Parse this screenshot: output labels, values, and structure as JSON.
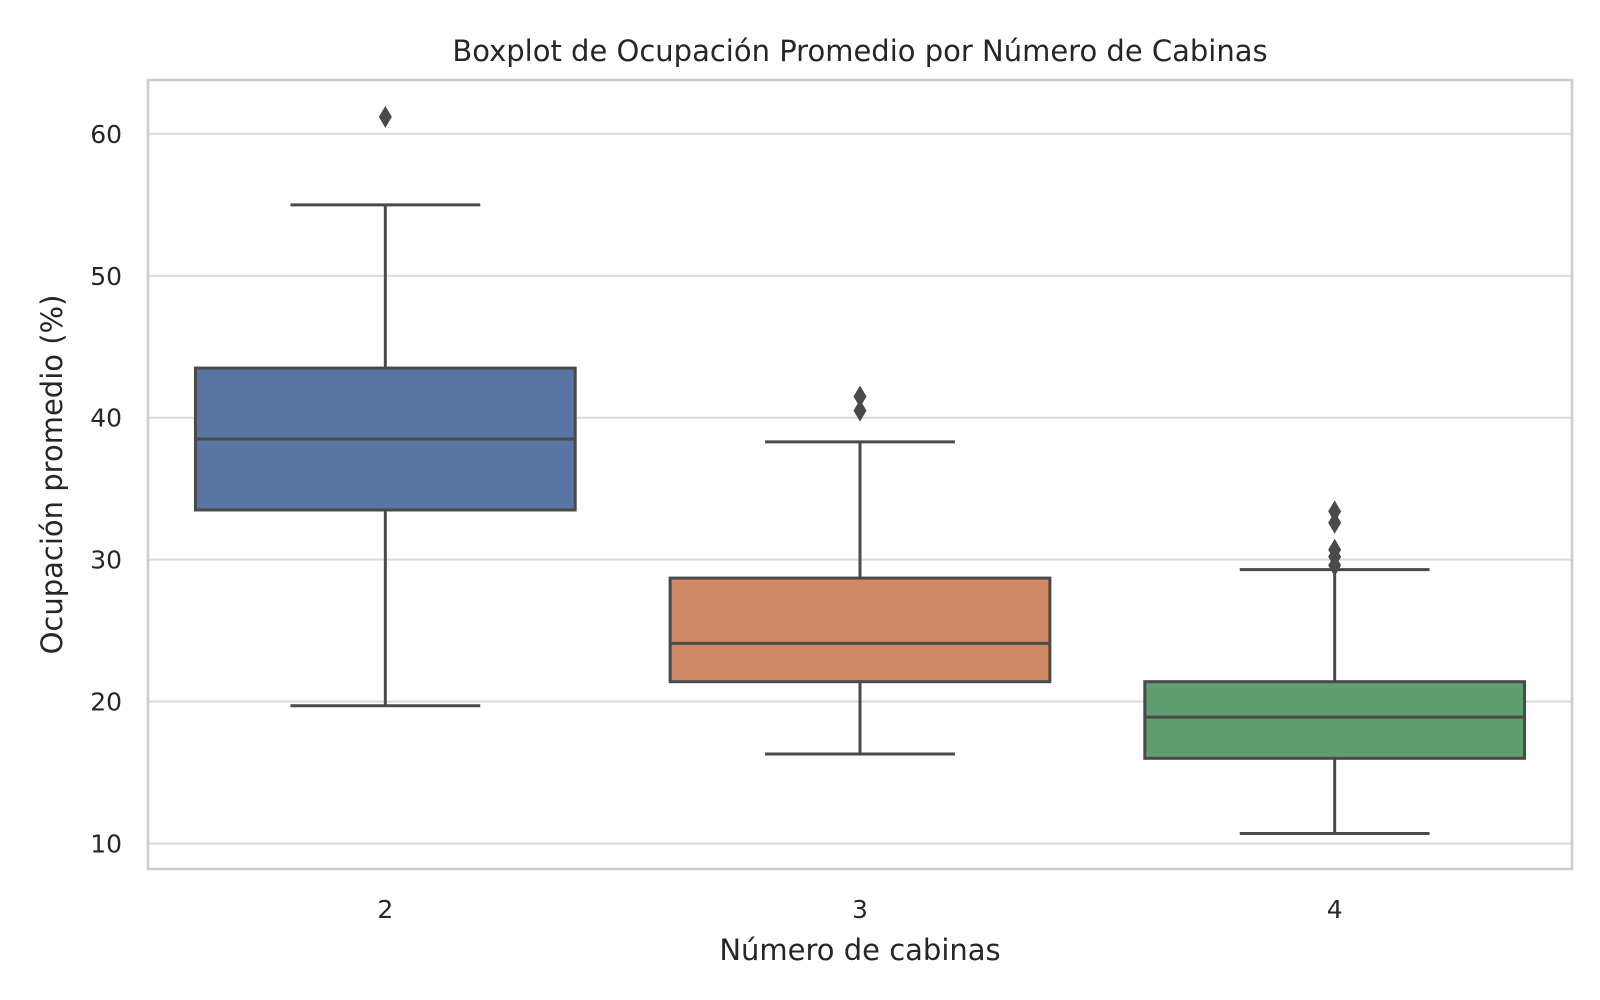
{
  "chart_data": {
    "type": "boxplot",
    "title": "Boxplot de Ocupación Promedio por Número de Cabinas",
    "xlabel": "Número de cabinas",
    "ylabel": "Ocupación promedio (%)",
    "ylim": [
      8.2,
      63.8
    ],
    "yticks": [
      10,
      20,
      30,
      40,
      50,
      60
    ],
    "grid": true,
    "categories": [
      "2",
      "3",
      "4"
    ],
    "boxes": [
      {
        "category": "2",
        "color": "#5975a4",
        "whisker_low": 19.7,
        "q1": 33.5,
        "median": 38.5,
        "q3": 43.5,
        "whisker_high": 55.0,
        "outliers": [
          61.2
        ]
      },
      {
        "category": "3",
        "color": "#cc8963",
        "whisker_low": 16.3,
        "q1": 21.4,
        "median": 24.1,
        "q3": 28.7,
        "whisker_high": 38.3,
        "outliers": [
          40.5,
          41.5
        ]
      },
      {
        "category": "4",
        "color": "#5f9e6e",
        "whisker_low": 10.7,
        "q1": 16.0,
        "median": 18.9,
        "q3": 21.4,
        "whisker_high": 29.3,
        "outliers": [
          29.6,
          30.2,
          30.7,
          32.6,
          33.4
        ]
      }
    ],
    "colors": {
      "edge": "#4a4a4a",
      "grid": "#dadada",
      "frame": "#cccccc",
      "text": "#262626"
    }
  }
}
